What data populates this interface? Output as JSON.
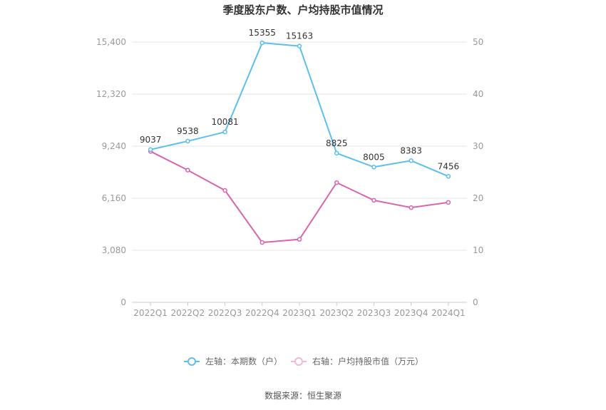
{
  "chart_data": {
    "type": "line",
    "title": "季度股东户数、户均持股市值情况",
    "categories": [
      "2022Q1",
      "2022Q2",
      "2022Q3",
      "2022Q4",
      "2023Q1",
      "2023Q2",
      "2023Q3",
      "2023Q4",
      "2024Q1"
    ],
    "left_axis": {
      "ticks": [
        "0",
        "3,080",
        "6,160",
        "9,240",
        "12,320",
        "15,400"
      ],
      "min": 0,
      "max": 15400
    },
    "right_axis": {
      "ticks": [
        "0",
        "10",
        "20",
        "30",
        "40",
        "50"
      ],
      "min": 0,
      "max": 50
    },
    "grid": true,
    "legend_position": "bottom",
    "series": [
      {
        "name": "左轴：本期数（户）",
        "axis": "left",
        "color": "#5bbfef",
        "values": [
          9037,
          9538,
          10081,
          15355,
          15163,
          8825,
          8005,
          8383,
          7456
        ],
        "labels": [
          "9037",
          "9538",
          "10081",
          "15355",
          "15163",
          "8825",
          "8005",
          "8383",
          "7456"
        ]
      },
      {
        "name": "右轴：户均持股市值（万元）",
        "axis": "right",
        "color": "#d965ad",
        "values": [
          29.0,
          25.4,
          21.5,
          11.5,
          12.1,
          23.0,
          19.6,
          18.2,
          19.2
        ]
      }
    ]
  },
  "source": "数据来源：恒生聚源"
}
